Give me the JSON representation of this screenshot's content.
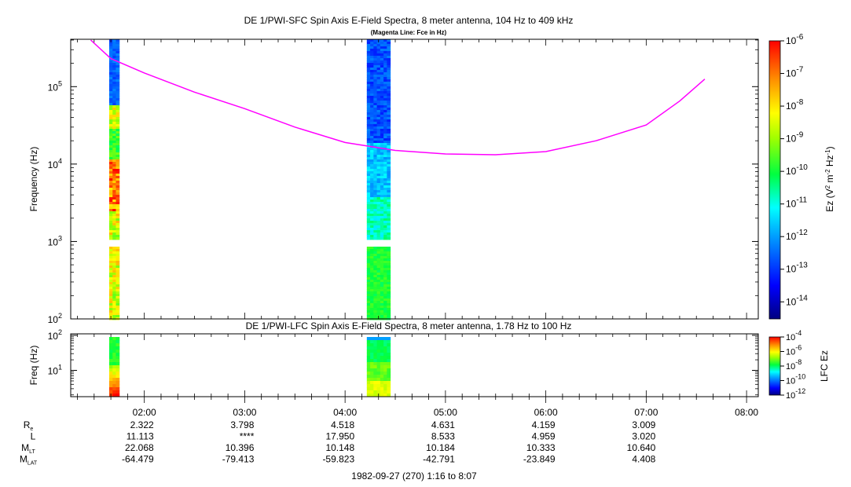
{
  "chart_data": [
    {
      "type": "heatmap",
      "title": "DE 1/PWI-SFC  Spin Axis E-Field Spectra, 8 meter antenna, 104 Hz to 409 kHz",
      "subtitle": "(Magenta Line: Fce in Hz)",
      "ylabel": "Frequency (Hz)",
      "yscale": "log",
      "ylim": [
        100,
        409000
      ],
      "y_ticks": [
        {
          "v": 100,
          "base": "10",
          "exp": "2"
        },
        {
          "v": 1000,
          "base": "10",
          "exp": "3"
        },
        {
          "v": 10000,
          "base": "10",
          "exp": "4"
        },
        {
          "v": 100000,
          "base": "10",
          "exp": "5"
        }
      ],
      "colorbar": {
        "label_main": "Ez (V",
        "label_sup1": "2",
        "label_mid": " m",
        "label_sup2": "-2",
        "label_mid2": " Hz",
        "label_sup3": "-1",
        "label_end": ")",
        "scale": "log",
        "range": [
          3e-15,
          1e-06
        ],
        "ticks": [
          {
            "v": 1e-06,
            "base": "10",
            "exp": "-6"
          },
          {
            "v": 1e-07,
            "base": "10",
            "exp": "-7"
          },
          {
            "v": 1e-08,
            "base": "10",
            "exp": "-8"
          },
          {
            "v": 1e-09,
            "base": "10",
            "exp": "-9"
          },
          {
            "v": 1e-10,
            "base": "10",
            "exp": "-10"
          },
          {
            "v": 1e-11,
            "base": "10",
            "exp": "-11"
          },
          {
            "v": 1e-12,
            "base": "10",
            "exp": "-12"
          },
          {
            "v": 1e-13,
            "base": "10",
            "exp": "-13"
          },
          {
            "v": 1e-14,
            "base": "10",
            "exp": "-14"
          }
        ]
      },
      "data_blocks": [
        {
          "t_start": "01:39",
          "t_end": "01:45",
          "f_min": 104,
          "f_max": 409000
        },
        {
          "t_start": "04:13",
          "t_end": "04:27",
          "f_min": 104,
          "f_max": 409000
        }
      ],
      "fce_line": {
        "name": "Fce",
        "color": "#ff00ff",
        "points": [
          {
            "t": "01:28",
            "f": 400000
          },
          {
            "t": "01:40",
            "f": 230000
          },
          {
            "t": "02:00",
            "f": 150000
          },
          {
            "t": "02:30",
            "f": 85000
          },
          {
            "t": "03:00",
            "f": 52000
          },
          {
            "t": "03:30",
            "f": 30000
          },
          {
            "t": "04:00",
            "f": 19000
          },
          {
            "t": "04:30",
            "f": 15000
          },
          {
            "t": "05:00",
            "f": 13500
          },
          {
            "t": "05:30",
            "f": 13200
          },
          {
            "t": "06:00",
            "f": 14500
          },
          {
            "t": "06:30",
            "f": 20000
          },
          {
            "t": "07:00",
            "f": 32000
          },
          {
            "t": "07:20",
            "f": 65000
          },
          {
            "t": "07:35",
            "f": 125000
          }
        ]
      }
    },
    {
      "type": "heatmap",
      "title": "DE 1/PWI-LFC  Spin Axis E-Field Spectra, 8 meter antenna, 1.78 Hz to 100 Hz",
      "ylabel": "Freq (Hz)",
      "yscale": "log",
      "ylim": [
        1.78,
        110
      ],
      "y_ticks": [
        {
          "v": 10,
          "base": "10",
          "exp": "1"
        },
        {
          "v": 100,
          "base": "10",
          "exp": "2"
        }
      ],
      "colorbar": {
        "label": "LFC Ez",
        "scale": "log",
        "range": [
          1e-12,
          0.0001
        ],
        "ticks": [
          {
            "v": 0.0001,
            "base": "10",
            "exp": "-4"
          },
          {
            "v": 1e-06,
            "base": "10",
            "exp": "-6"
          },
          {
            "v": 1e-08,
            "base": "10",
            "exp": "-8"
          },
          {
            "v": 1e-10,
            "base": "10",
            "exp": "-10"
          },
          {
            "v": 1e-12,
            "base": "10",
            "exp": "-12"
          }
        ]
      },
      "data_blocks": [
        {
          "t_start": "01:39",
          "t_end": "01:45",
          "f_min": 1.78,
          "f_max": 110
        },
        {
          "t_start": "04:13",
          "t_end": "04:27",
          "f_min": 1.78,
          "f_max": 110
        }
      ]
    }
  ],
  "x_axis": {
    "ticks": [
      "02:00",
      "03:00",
      "04:00",
      "05:00",
      "06:00",
      "07:00",
      "08:00"
    ]
  },
  "ephemeris": {
    "rows": [
      {
        "label": "R",
        "sub": "e",
        "values": [
          "2.322",
          "3.798",
          "4.518",
          "4.631",
          "4.159",
          "3.009"
        ]
      },
      {
        "label": "L",
        "sub": "",
        "values": [
          "11.113",
          "****",
          "17.950",
          "8.533",
          "4.959",
          "3.020"
        ]
      },
      {
        "label": "M",
        "sub": "LT",
        "values": [
          "22.068",
          "10.396",
          "10.148",
          "10.184",
          "10.333",
          "10.640"
        ]
      },
      {
        "label": "M",
        "sub": "LAT",
        "values": [
          "-64.479",
          "-79.413",
          "-59.823",
          "-42.791",
          "-23.849",
          "4.408"
        ]
      }
    ]
  },
  "footer": "1982-09-27 (270) 1:16 to 8:07",
  "colors": {
    "fce": "#ff00ff",
    "axis": "#000000",
    "background": "#ffffff"
  }
}
